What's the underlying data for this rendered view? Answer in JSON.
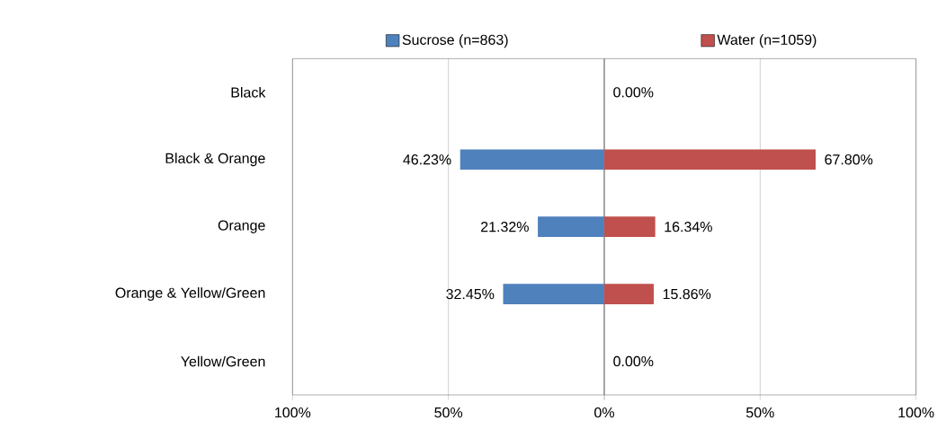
{
  "chart_data": [
    {
      "type": "bar",
      "orientation": "horizontal",
      "categories": [
        "Black",
        "Black & Orange",
        "Orange",
        "Orange & Yellow/Green",
        "Yellow/Green"
      ],
      "series": [
        {
          "name": "Sucrose (n=863)",
          "color": "#4f81bd",
          "values": [
            0,
            46.23,
            21.32,
            32.45,
            0
          ],
          "value_labels": [
            null,
            "46.23%",
            "21.32%",
            "32.45%",
            null
          ]
        }
      ],
      "xlim": [
        100,
        0
      ],
      "xticks": [
        {
          "value": 100,
          "label": "100%"
        },
        {
          "value": 50,
          "label": "50%"
        },
        {
          "value": 0,
          "label": "0%"
        }
      ],
      "grid": "x",
      "legend": "top"
    },
    {
      "type": "bar",
      "orientation": "horizontal",
      "categories": [
        null,
        null,
        null,
        null,
        null
      ],
      "series": [
        {
          "name": "Water (n=1059)",
          "color": "#c0504d",
          "values": [
            0,
            67.8,
            16.34,
            15.86,
            0
          ],
          "value_labels": [
            "0.00%",
            "67.80%",
            "16.34%",
            "15.86%",
            "0.00%"
          ]
        }
      ],
      "xlim": [
        0,
        100
      ],
      "xticks": [
        {
          "value": 0,
          "label": null
        },
        {
          "value": 50,
          "label": "50%"
        },
        {
          "value": 100,
          "label": "100%"
        }
      ],
      "grid": "x",
      "legend": "top"
    }
  ]
}
